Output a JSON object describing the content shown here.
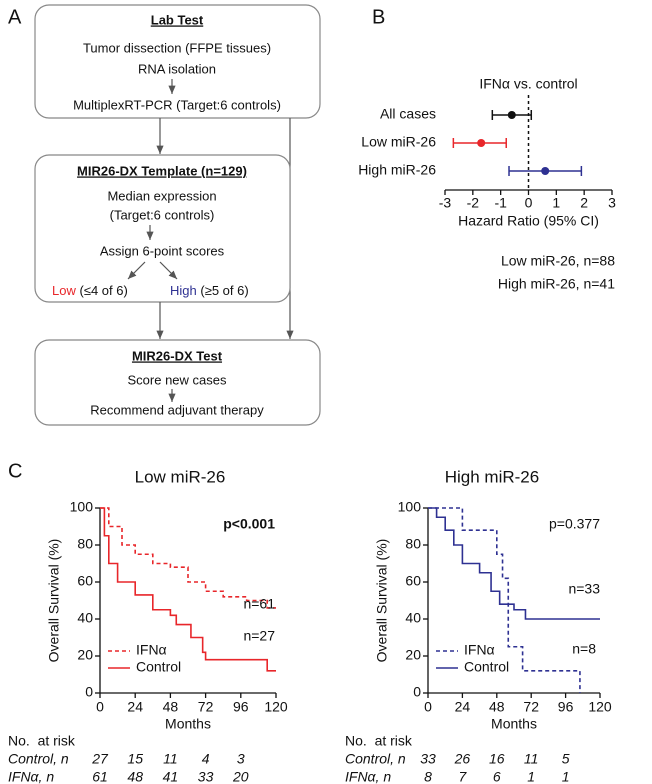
{
  "panels": [
    "A",
    "B",
    "C"
  ],
  "diagram": {
    "boxes": [
      {
        "title": "Lab Test",
        "lines": [
          "Tumor dissection (FFPE tissues)",
          "RNA isolation",
          "MultiplexRT-PCR  (Target:6 controls)"
        ]
      },
      {
        "title": "MIR26-DX Template (n=129)",
        "lines": [
          "Median expression",
          "(Target:6 controls)",
          "Assign 6-point scores"
        ],
        "outcomes": [
          {
            "label": "Low",
            "detail": "(≤4 of 6)",
            "color": "#e8262a"
          },
          {
            "label": "High",
            "detail": "(≥5 of 6)",
            "color": "#2e3192"
          }
        ]
      },
      {
        "title": "MIR26-DX Test",
        "lines": [
          "Score new cases",
          "Recommend adjuvant therapy"
        ]
      }
    ]
  },
  "chart_data": [
    {
      "type": "forest",
      "title": "IFNα vs. control",
      "x_label": "Hazard Ratio (95% CI)",
      "categories": [
        "All cases",
        "Low miR-26",
        "High miR-26"
      ],
      "colors": [
        "#111111",
        "#e8262a",
        "#2e3192"
      ],
      "values": [
        -0.6,
        -1.7,
        0.6
      ],
      "lower": [
        -1.3,
        -2.7,
        -0.7
      ],
      "upper": [
        0.1,
        -0.8,
        1.9
      ],
      "xlim": [
        -3,
        3
      ],
      "xticks": [
        -3,
        -2,
        -1,
        0,
        1,
        2,
        3
      ],
      "reference": 0,
      "notes": [
        "Low miR-26, n=88",
        "High miR-26, n=41"
      ]
    },
    {
      "type": "step",
      "title": "Low miR-26",
      "title_color": "#e8262a",
      "y_label": "Overall Survival (%)",
      "x_label": "Months",
      "xlim": [
        0,
        120
      ],
      "xticks": [
        0,
        24,
        48,
        72,
        96,
        120
      ],
      "ylim": [
        0,
        100
      ],
      "yticks": [
        0,
        20,
        40,
        60,
        80,
        100
      ],
      "series": [
        {
          "name": "IFNα",
          "color": "#e8262a",
          "line_style": "dashed",
          "x": [
            0,
            6,
            15,
            24,
            36,
            48,
            60,
            72,
            84,
            100,
            114,
            120
          ],
          "values": [
            100,
            90,
            80,
            75,
            70,
            68,
            60,
            55,
            52,
            50,
            46,
            46
          ]
        },
        {
          "name": "Control",
          "color": "#e8262a",
          "line_style": "solid",
          "x": [
            0,
            3,
            6,
            12,
            24,
            36,
            48,
            52,
            62,
            70,
            72,
            108,
            114,
            120
          ],
          "values": [
            100,
            85,
            70,
            60,
            53,
            45,
            42,
            37,
            30,
            22,
            18,
            18,
            12,
            12
          ]
        }
      ],
      "annotations": [
        "p<0.001",
        "n=61",
        "n=27"
      ],
      "risk_table": {
        "title": "No.  at risk",
        "rows": [
          {
            "label": "Control, n",
            "values": [
              27,
              15,
              11,
              4,
              3
            ]
          },
          {
            "label": "IFNα, n",
            "values": [
              61,
              48,
              41,
              33,
              20
            ]
          }
        ]
      }
    },
    {
      "type": "step",
      "title": "High miR-26",
      "title_color": "#2e3192",
      "y_label": "Overall Survival (%)",
      "x_label": "Months",
      "xlim": [
        0,
        120
      ],
      "xticks": [
        0,
        24,
        48,
        72,
        96,
        120
      ],
      "ylim": [
        0,
        100
      ],
      "yticks": [
        0,
        20,
        40,
        60,
        80,
        100
      ],
      "series": [
        {
          "name": "IFNα",
          "color": "#2e3192",
          "line_style": "dashed",
          "x": [
            0,
            24,
            36,
            48,
            52,
            56,
            66,
            104,
            106
          ],
          "values": [
            100,
            88,
            88,
            75,
            62,
            25,
            12,
            12,
            0
          ]
        },
        {
          "name": "Control",
          "color": "#2e3192",
          "line_style": "solid",
          "x": [
            0,
            6,
            12,
            18,
            24,
            36,
            44,
            50,
            60,
            68,
            120
          ],
          "values": [
            100,
            95,
            88,
            80,
            70,
            65,
            55,
            48,
            45,
            40,
            40
          ]
        }
      ],
      "annotations": [
        "p=0.377",
        "n=33",
        "n=8"
      ],
      "risk_table": {
        "title": "No.  at risk",
        "rows": [
          {
            "label": "Control, n",
            "values": [
              33,
              26,
              16,
              11,
              5
            ]
          },
          {
            "label": "IFNα, n",
            "values": [
              8,
              7,
              6,
              1,
              1
            ]
          }
        ]
      }
    }
  ]
}
